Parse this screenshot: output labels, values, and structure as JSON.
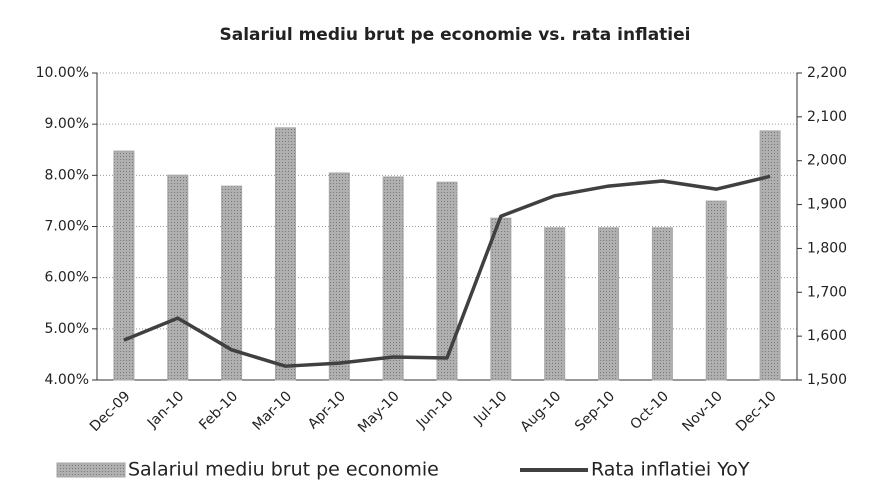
{
  "chart_data": {
    "type": "bar_line",
    "title": "Salariul mediu brut pe economie vs. rata inflatiei",
    "categories": [
      "Dec-09",
      "Jan-10",
      "Feb-10",
      "Mar-10",
      "Apr-10",
      "May-10",
      "Jun-10",
      "Jul-10",
      "Aug-10",
      "Sep-10",
      "Oct-10",
      "Nov-10",
      "Dec-10"
    ],
    "series": [
      {
        "name": "Salariul mediu brut pe economie",
        "type": "bar",
        "axis": "y2",
        "color": "#a6a6a6",
        "values": [
          2022,
          1967,
          1942,
          2075,
          1972,
          1963,
          1951,
          1869,
          1847,
          1847,
          1847,
          1908,
          2068
        ]
      },
      {
        "name": "Rata inflatiei YoY",
        "type": "line",
        "axis": "y",
        "color": "#404040",
        "values": [
          4.78,
          5.21,
          4.59,
          4.27,
          4.33,
          4.45,
          4.43,
          7.2,
          7.6,
          7.79,
          7.89,
          7.73,
          7.98
        ]
      }
    ],
    "ylim": [
      4,
      10
    ],
    "yticks": [
      {
        "value": 4,
        "label": "4.00%"
      },
      {
        "value": 5,
        "label": "5.00%"
      },
      {
        "value": 6,
        "label": "6.00%"
      },
      {
        "value": 7,
        "label": "7.00%"
      },
      {
        "value": 8,
        "label": "8.00%"
      },
      {
        "value": 9,
        "label": "9.00%"
      },
      {
        "value": 10,
        "label": "10.00%"
      }
    ],
    "y2lim": [
      1500,
      2200
    ],
    "y2ticks": [
      {
        "value": 1500,
        "label": "1,500"
      },
      {
        "value": 1600,
        "label": "1,600"
      },
      {
        "value": 1700,
        "label": "1,700"
      },
      {
        "value": 1800,
        "label": "1,800"
      },
      {
        "value": 1900,
        "label": "1,900"
      },
      {
        "value": 2000,
        "label": "2,000"
      },
      {
        "value": 2100,
        "label": "2,100"
      },
      {
        "value": 2200,
        "label": "2,200"
      }
    ],
    "grid": true,
    "legend": "bottom"
  }
}
